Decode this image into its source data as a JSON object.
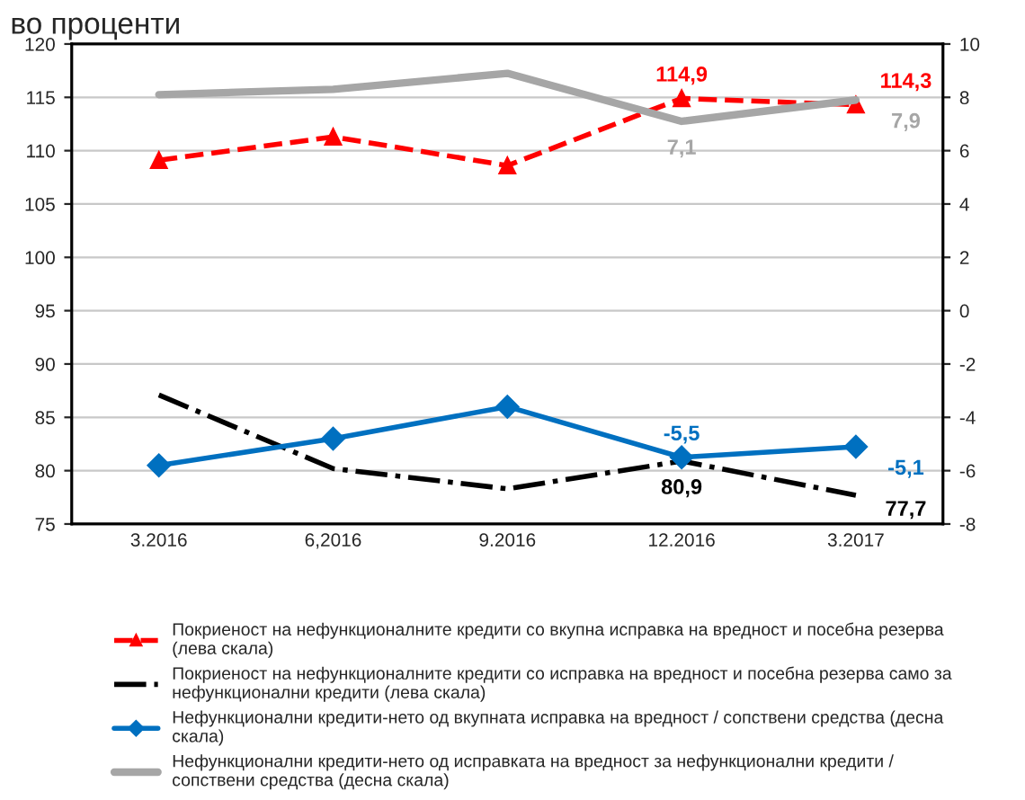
{
  "chart_data": {
    "type": "line",
    "title": "во проценти",
    "categories": [
      "3.2016",
      "6,2016",
      "9.2016",
      "12.2016",
      "3.2017"
    ],
    "series": [
      {
        "name": "Покриеност на нефункционалните кредити со вкупна исправка на вредност и посебна резерва (лева скала)",
        "color": "#ff0000",
        "values": [
          109.1,
          111.3,
          108.6,
          114.9,
          114.3
        ],
        "value_labels": [
          null,
          null,
          null,
          "114,9",
          "114,3"
        ],
        "marker": "triangle",
        "line_style": "dashed"
      },
      {
        "name": "Покриеност на нефункционалните кредити со исправка на вредност и посебна резерва само за нефункционални кредити (лева скала)",
        "color": "#000000",
        "values": [
          87.1,
          80.2,
          78.3,
          80.9,
          77.7
        ],
        "value_labels": [
          null,
          null,
          null,
          "80,9",
          "77,7"
        ],
        "marker": "none",
        "line_style": "dashdot"
      },
      {
        "name": "Нефункционални кредити-нето од вкупната исправка на вредност / сопствени средства (десна скала)",
        "color": "#0070c0",
        "values": [
          -5.8,
          -4.8,
          -3.6,
          -5.5,
          -5.1
        ],
        "value_labels": [
          null,
          null,
          null,
          "-5,5",
          "-5,1"
        ],
        "marker": "diamond",
        "line_style": "solid",
        "axis": "y2"
      },
      {
        "name": "Нефункционални кредити-нето од исправката на вредност за нефункционални кредити / сопствени средства (десна скала)",
        "color": "#a6a6a6",
        "values": [
          8.1,
          8.3,
          8.9,
          7.1,
          7.9
        ],
        "value_labels": [
          null,
          null,
          null,
          "7,1",
          "7,9"
        ],
        "marker": "none",
        "line_style": "solid",
        "axis": "y2"
      }
    ],
    "ylim": [
      75,
      120
    ],
    "yticks": [
      75,
      80,
      85,
      90,
      95,
      100,
      105,
      110,
      115,
      120
    ],
    "y2lim": [
      -8,
      10
    ],
    "y2ticks": [
      -8,
      -6,
      -4,
      -2,
      0,
      2,
      4,
      6,
      8,
      10
    ],
    "grid": "y",
    "legend": "bottom"
  }
}
